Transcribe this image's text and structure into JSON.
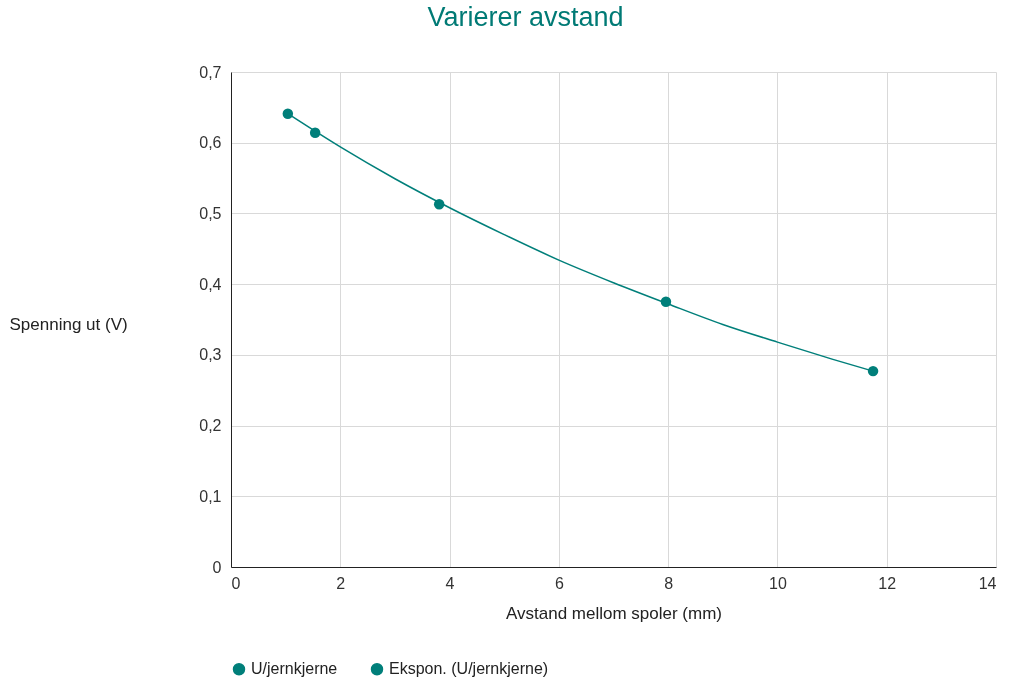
{
  "chart_data": {
    "type": "scatter",
    "title": "Varierer avstand",
    "xlabel": "Avstand mellom spoler (mm)",
    "ylabel": "Spenning ut (V)",
    "xlim": [
      0,
      14
    ],
    "xticks": [
      0,
      2,
      4,
      6,
      8,
      10,
      12,
      14
    ],
    "ylim": [
      0,
      0.7
    ],
    "yticks": [
      0,
      {
        "value": 0.1,
        "label": "0,1"
      },
      {
        "value": 0.2,
        "label": "0,2"
      },
      {
        "value": 0.3,
        "label": "0,3"
      },
      {
        "value": 0.4,
        "label": "0,4"
      },
      {
        "value": 0.5,
        "label": "0,5"
      },
      {
        "value": 0.6,
        "label": "0,6"
      },
      {
        "value": 0.7,
        "label": "0,7"
      }
    ],
    "grid": true,
    "legend": "bottom",
    "marker": "circle",
    "series": [
      {
        "name": "U/jernkjerne",
        "color": "#007f7a",
        "x": [
          1.04,
          1.54,
          3.81,
          7.96,
          11.75
        ],
        "values": [
          0.641,
          0.614,
          0.513,
          0.375,
          0.277
        ]
      },
      {
        "name": "Ekspon. (U/jernkjerne)",
        "type": "line",
        "color": "#007f7a",
        "line_style": "solid",
        "marker": "none",
        "x": [
          1.04,
          2,
          3,
          4,
          5,
          6,
          7,
          8,
          9,
          10,
          11,
          11.75
        ],
        "values": [
          0.641,
          0.594,
          0.549,
          0.508,
          0.47,
          0.434,
          0.402,
          0.372,
          0.343,
          0.318,
          0.294,
          0.277
        ]
      }
    ]
  }
}
